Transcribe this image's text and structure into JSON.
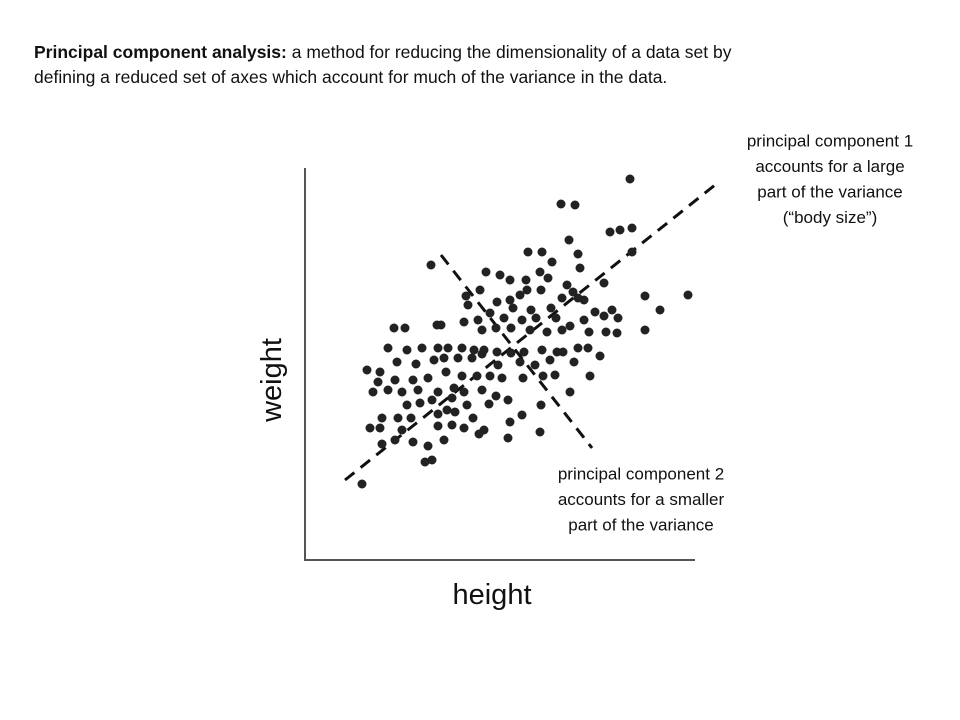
{
  "heading": {
    "bold": "Principal component analysis:",
    "lines": [
      "a method for reducing the dimensionality of a data set by",
      "defining a reduced set of axes which account for much of the variance in the data."
    ]
  },
  "chart_data": {
    "type": "scatter",
    "x_label": "height",
    "y_label": "weight",
    "color": "#222222",
    "xlim": [
      0,
      390
    ],
    "ylim": [
      0,
      390
    ],
    "x": [
      325,
      256,
      270,
      305,
      315,
      327,
      264,
      327,
      126,
      223,
      237,
      273,
      247,
      275,
      235,
      181,
      195,
      205,
      221,
      243,
      262,
      268,
      299,
      340,
      383,
      161,
      175,
      215,
      222,
      236,
      205,
      257,
      273,
      279,
      163,
      192,
      208,
      226,
      246,
      290,
      307,
      355,
      89,
      100,
      132,
      136,
      159,
      173,
      185,
      199,
      217,
      231,
      251,
      265,
      279,
      299,
      313,
      340,
      177,
      191,
      206,
      225,
      242,
      257,
      284,
      301,
      312,
      83,
      102,
      117,
      133,
      143,
      157,
      169,
      179,
      192,
      206,
      219,
      237,
      252,
      258,
      273,
      283,
      62,
      75,
      92,
      111,
      129,
      139,
      153,
      167,
      177,
      193,
      215,
      230,
      245,
      269,
      295,
      73,
      90,
      108,
      123,
      141,
      157,
      172,
      185,
      197,
      218,
      238,
      250,
      285,
      68,
      83,
      97,
      113,
      133,
      149,
      159,
      177,
      191,
      265,
      102,
      115,
      127,
      142,
      147,
      162,
      184,
      203,
      236,
      77,
      93,
      106,
      133,
      150,
      168,
      217,
      65,
      75,
      97,
      133,
      147,
      159,
      179,
      205,
      77,
      90,
      108,
      123,
      139,
      174,
      235,
      127,
      120,
      203,
      57
    ],
    "values": [
      381,
      356,
      355,
      328,
      330,
      332,
      320,
      308,
      295,
      308,
      308,
      306,
      298,
      292,
      288,
      288,
      285,
      280,
      280,
      282,
      275,
      268,
      277,
      264,
      265,
      264,
      270,
      265,
      270,
      270,
      260,
      262,
      262,
      260,
      255,
      258,
      252,
      250,
      252,
      248,
      250,
      250,
      232,
      232,
      235,
      235,
      238,
      240,
      247,
      242,
      240,
      242,
      242,
      234,
      240,
      244,
      242,
      230,
      230,
      232,
      232,
      230,
      228,
      230,
      228,
      228,
      227,
      212,
      210,
      212,
      212,
      212,
      212,
      210,
      210,
      208,
      207,
      208,
      210,
      208,
      208,
      212,
      212,
      190,
      188,
      198,
      196,
      200,
      202,
      202,
      202,
      206,
      195,
      198,
      195,
      200,
      198,
      204,
      178,
      180,
      180,
      182,
      188,
      184,
      184,
      184,
      182,
      182,
      184,
      185,
      184,
      168,
      170,
      168,
      170,
      168,
      172,
      168,
      170,
      164,
      168,
      155,
      157,
      160,
      150,
      162,
      155,
      156,
      160,
      155,
      142,
      142,
      142,
      146,
      148,
      142,
      145,
      132,
      132,
      130,
      134,
      135,
      132,
      130,
      138,
      116,
      120,
      118,
      114,
      120,
      126,
      128,
      100,
      98,
      122,
      76
    ],
    "annotations": [
      {
        "lines": [
          "principal component 1",
          "accounts for a large",
          "part of the variance",
          "(“body size”)"
        ]
      },
      {
        "lines": [
          "principal component 2",
          "accounts for a smaller",
          "part of the variance"
        ]
      }
    ]
  }
}
